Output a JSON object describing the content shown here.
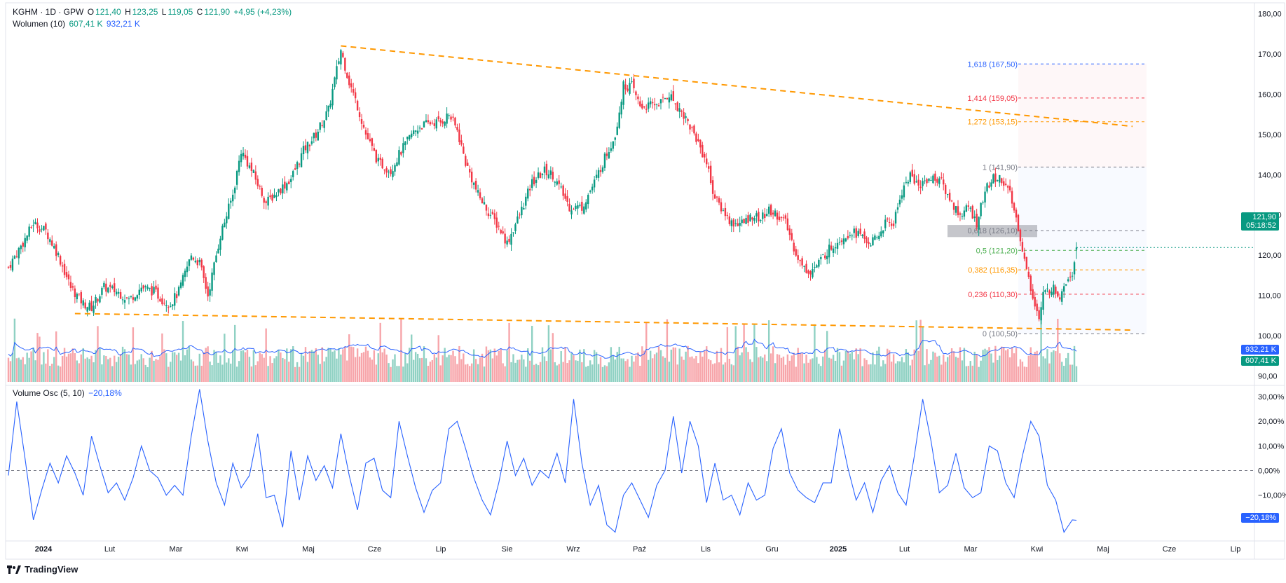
{
  "header": {
    "symbol": "KGHM · 1D · GPW",
    "o_label": "O",
    "o_value": "121,40",
    "h_label": "H",
    "h_value": "123,25",
    "l_label": "L",
    "l_value": "119,05",
    "c_label": "C",
    "c_value": "121,90",
    "change": "+4,95 (+4,23%)",
    "volume_label": "Wolumen (10)",
    "volume_value": "607,41 K",
    "volume_ma_value": "932,21 K",
    "osc_label": "Volume Osc (5, 10)",
    "osc_value": "−20,18%"
  },
  "price_tag": {
    "price": "121,90",
    "countdown": "05:18:52"
  },
  "volume_tags": {
    "ma": "932,21 K",
    "vol": "607,41 K"
  },
  "osc_tag": "−20,18%",
  "brand": "TradingView",
  "colors": {
    "up": "#089981",
    "down": "#f23645",
    "up_vol": "#8fd1c3",
    "down_vol": "#f7a5aa",
    "line": "#2962ff",
    "trend": "#ff9800"
  },
  "chart_data": [
    {
      "type": "candlestick",
      "title": "KGHM · 1D · GPW",
      "y_axis_ticks": [
        "180,00",
        "170,00",
        "160,00",
        "150,00",
        "140,00",
        "130,00",
        "120,00",
        "110,00",
        "100,00",
        "90,00"
      ],
      "ylim": [
        88,
        182
      ],
      "x_axis_labels": [
        "2024",
        "Lut",
        "Mar",
        "Kwi",
        "Maj",
        "Cze",
        "Lip",
        "Sie",
        "Wrz",
        "Paź",
        "Lis",
        "Gru",
        "2025",
        "Lut",
        "Mar",
        "Kwi",
        "Maj",
        "Cze",
        "Lip"
      ],
      "x_axis_bold": [
        "2024",
        "2025"
      ],
      "last": {
        "open": 121.4,
        "high": 123.25,
        "low": 119.05,
        "close": 121.9
      },
      "close_path": [
        [
          0,
          117
        ],
        [
          8,
          124
        ],
        [
          12,
          128
        ],
        [
          18,
          126
        ],
        [
          24,
          120
        ],
        [
          30,
          112
        ],
        [
          36,
          108
        ],
        [
          40,
          107
        ],
        [
          46,
          112
        ],
        [
          52,
          111
        ],
        [
          58,
          109
        ],
        [
          64,
          112
        ],
        [
          70,
          111
        ],
        [
          74,
          109
        ],
        [
          78,
          108
        ],
        [
          82,
          111
        ],
        [
          88,
          120
        ],
        [
          92,
          118
        ],
        [
          96,
          110
        ],
        [
          102,
          125
        ],
        [
          108,
          135
        ],
        [
          112,
          146
        ],
        [
          118,
          140
        ],
        [
          124,
          133
        ],
        [
          130,
          136
        ],
        [
          136,
          139
        ],
        [
          142,
          146
        ],
        [
          148,
          150
        ],
        [
          154,
          156
        ],
        [
          160,
          171
        ],
        [
          164,
          163
        ],
        [
          168,
          157
        ],
        [
          172,
          150
        ],
        [
          178,
          143
        ],
        [
          184,
          141
        ],
        [
          188,
          145
        ],
        [
          194,
          150
        ],
        [
          198,
          152
        ],
        [
          204,
          153
        ],
        [
          208,
          153
        ],
        [
          212,
          155
        ],
        [
          216,
          151
        ],
        [
          220,
          143
        ],
        [
          226,
          135
        ],
        [
          232,
          130
        ],
        [
          236,
          127
        ],
        [
          240,
          123
        ],
        [
          246,
          130
        ],
        [
          252,
          138
        ],
        [
          258,
          141
        ],
        [
          262,
          140
        ],
        [
          266,
          136
        ],
        [
          270,
          132
        ],
        [
          276,
          132
        ],
        [
          282,
          138
        ],
        [
          286,
          143
        ],
        [
          292,
          150
        ],
        [
          296,
          162
        ],
        [
          300,
          162
        ],
        [
          304,
          157
        ],
        [
          308,
          157
        ],
        [
          314,
          158
        ],
        [
          318,
          160
        ],
        [
          322,
          157
        ],
        [
          326,
          154
        ],
        [
          332,
          148
        ],
        [
          336,
          143
        ],
        [
          340,
          134
        ],
        [
          344,
          131
        ],
        [
          348,
          128
        ],
        [
          354,
          128
        ],
        [
          358,
          130
        ],
        [
          362,
          129
        ],
        [
          366,
          131
        ],
        [
          370,
          130
        ],
        [
          374,
          128
        ],
        [
          378,
          122
        ],
        [
          382,
          117
        ],
        [
          386,
          116
        ],
        [
          390,
          118
        ],
        [
          394,
          121
        ],
        [
          400,
          124
        ],
        [
          406,
          126
        ],
        [
          410,
          125
        ],
        [
          414,
          123
        ],
        [
          418,
          124
        ],
        [
          422,
          128
        ],
        [
          426,
          128
        ],
        [
          430,
          136
        ],
        [
          434,
          140
        ],
        [
          438,
          137
        ],
        [
          442,
          139
        ],
        [
          448,
          139
        ],
        [
          454,
          133
        ],
        [
          458,
          130
        ],
        [
          462,
          132
        ],
        [
          466,
          128
        ],
        [
          470,
          136
        ],
        [
          474,
          139
        ],
        [
          478,
          139
        ],
        [
          482,
          135
        ],
        [
          486,
          127
        ],
        [
          490,
          116
        ],
        [
          494,
          108
        ],
        [
          496,
          104
        ],
        [
          498,
          110
        ],
        [
          502,
          112
        ],
        [
          506,
          110
        ],
        [
          508,
          113
        ],
        [
          512,
          116
        ],
        [
          514,
          121.9
        ]
      ],
      "volume_ylim": [
        0,
        9000
      ],
      "fibonacci": [
        {
          "label": "1,618 (167,50)",
          "price": 167.5,
          "color": "#2962ff"
        },
        {
          "label": "1,414 (159,05)",
          "price": 159.05,
          "color": "#f23645"
        },
        {
          "label": "1,272 (153,15)",
          "price": 153.15,
          "color": "#ff9800"
        },
        {
          "label": "1 (141,90)",
          "price": 141.9,
          "color": "#787b86"
        },
        {
          "label": "0,618 (126,10)",
          "price": 126.1,
          "color": "#787b86"
        },
        {
          "label": "0,5 (121,20)",
          "price": 121.2,
          "color": "#4caf50"
        },
        {
          "label": "0,382 (116,35)",
          "price": 116.35,
          "color": "#ff9800"
        },
        {
          "label": "0,236 (110,30)",
          "price": 110.3,
          "color": "#f23645"
        },
        {
          "label": "0 (100,50)",
          "price": 100.5,
          "color": "#787b86"
        }
      ],
      "trendlines": [
        {
          "from": [
            160,
            172
          ],
          "to": [
            541,
            152
          ]
        },
        {
          "from": [
            32,
            105.5
          ],
          "to": [
            541,
            101.4
          ]
        }
      ]
    },
    {
      "type": "line",
      "title": "Volume Osc (5, 10)",
      "y_axis_ticks": [
        "30,00%",
        "20,00%",
        "10,00%",
        "0,00%",
        "−10,00%"
      ],
      "ylim": [
        -28,
        34
      ],
      "last": -20.18,
      "path": [
        [
          0,
          -2
        ],
        [
          4,
          28
        ],
        [
          8,
          5
        ],
        [
          12,
          -20
        ],
        [
          16,
          -8
        ],
        [
          20,
          3
        ],
        [
          24,
          -5
        ],
        [
          28,
          6
        ],
        [
          32,
          -1
        ],
        [
          36,
          -10
        ],
        [
          40,
          14
        ],
        [
          44,
          2
        ],
        [
          48,
          -9
        ],
        [
          52,
          -5
        ],
        [
          56,
          -12
        ],
        [
          60,
          -3
        ],
        [
          64,
          10
        ],
        [
          68,
          0
        ],
        [
          72,
          -3
        ],
        [
          76,
          -10
        ],
        [
          80,
          -6
        ],
        [
          84,
          -10
        ],
        [
          88,
          14
        ],
        [
          92,
          33
        ],
        [
          96,
          12
        ],
        [
          100,
          -5
        ],
        [
          104,
          -14
        ],
        [
          108,
          3
        ],
        [
          112,
          -7
        ],
        [
          116,
          -2
        ],
        [
          120,
          15
        ],
        [
          124,
          -11
        ],
        [
          128,
          -10
        ],
        [
          132,
          -23
        ],
        [
          136,
          8
        ],
        [
          140,
          -12
        ],
        [
          144,
          6
        ],
        [
          148,
          -4
        ],
        [
          152,
          2
        ],
        [
          156,
          -7
        ],
        [
          160,
          15
        ],
        [
          164,
          -2
        ],
        [
          168,
          -16
        ],
        [
          172,
          3
        ],
        [
          176,
          5
        ],
        [
          180,
          -8
        ],
        [
          184,
          -11
        ],
        [
          188,
          20
        ],
        [
          192,
          6
        ],
        [
          196,
          -7
        ],
        [
          200,
          -17
        ],
        [
          204,
          -8
        ],
        [
          208,
          -5
        ],
        [
          212,
          17
        ],
        [
          216,
          20
        ],
        [
          220,
          9
        ],
        [
          224,
          -3
        ],
        [
          228,
          -12
        ],
        [
          232,
          -18
        ],
        [
          236,
          -5
        ],
        [
          240,
          12
        ],
        [
          244,
          -2
        ],
        [
          248,
          5
        ],
        [
          252,
          -6
        ],
        [
          256,
          0
        ],
        [
          260,
          -3
        ],
        [
          264,
          7
        ],
        [
          268,
          -5
        ],
        [
          272,
          29
        ],
        [
          276,
          3
        ],
        [
          280,
          -14
        ],
        [
          284,
          -6
        ],
        [
          288,
          -22
        ],
        [
          292,
          -25
        ],
        [
          296,
          -10
        ],
        [
          300,
          -5
        ],
        [
          304,
          -12
        ],
        [
          308,
          -19
        ],
        [
          312,
          -6
        ],
        [
          316,
          0
        ],
        [
          320,
          22
        ],
        [
          324,
          -1
        ],
        [
          328,
          20
        ],
        [
          332,
          10
        ],
        [
          336,
          -13
        ],
        [
          340,
          3
        ],
        [
          344,
          -12
        ],
        [
          348,
          -10
        ],
        [
          352,
          -18
        ],
        [
          356,
          -5
        ],
        [
          360,
          -12
        ],
        [
          364,
          -10
        ],
        [
          368,
          9
        ],
        [
          372,
          17
        ],
        [
          376,
          -1
        ],
        [
          380,
          -8
        ],
        [
          384,
          -11
        ],
        [
          388,
          -13
        ],
        [
          392,
          -5
        ],
        [
          396,
          -5
        ],
        [
          400,
          17
        ],
        [
          404,
          1
        ],
        [
          408,
          -12
        ],
        [
          412,
          -5
        ],
        [
          416,
          -17
        ],
        [
          420,
          -4
        ],
        [
          424,
          2
        ],
        [
          428,
          -9
        ],
        [
          432,
          -14
        ],
        [
          436,
          6
        ],
        [
          440,
          29
        ],
        [
          444,
          12
        ],
        [
          448,
          -9
        ],
        [
          452,
          -6
        ],
        [
          456,
          7
        ],
        [
          460,
          -7
        ],
        [
          464,
          -11
        ],
        [
          468,
          -9
        ],
        [
          472,
          10
        ],
        [
          476,
          8
        ],
        [
          480,
          -5
        ],
        [
          484,
          -11
        ],
        [
          488,
          6
        ],
        [
          492,
          20
        ],
        [
          496,
          14
        ],
        [
          500,
          -6
        ],
        [
          504,
          -12
        ],
        [
          508,
          -25
        ],
        [
          512,
          -20
        ],
        [
          514,
          -20.18
        ]
      ]
    }
  ]
}
